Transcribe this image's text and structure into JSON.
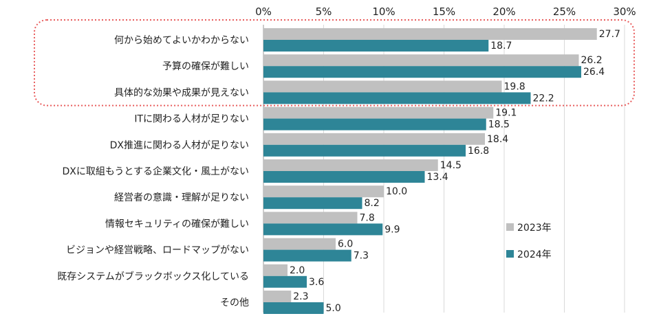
{
  "chart_data": {
    "type": "bar",
    "orientation": "horizontal",
    "title": "",
    "xlabel": "",
    "ylabel": "",
    "xlim": [
      0,
      30
    ],
    "xtick_labels": [
      "0%",
      "5%",
      "10%",
      "15%",
      "20%",
      "25%",
      "30%"
    ],
    "grid": true,
    "legend_position": "bottom-right",
    "categories": [
      "何から始めてよいかわからない",
      "予算の確保が難しい",
      "具体的な効果や成果が見えない",
      "ITに関わる人材が足りない",
      "DX推進に関わる人材が足りない",
      "DXに取組もうとする企業文化・風土がない",
      "経営者の意識・理解が足りない",
      "情報セキュリティの確保が難しい",
      "ビジョンや経営戦略、ロードマップがない",
      "既存システムがブラックボックス化している",
      "その他"
    ],
    "series": [
      {
        "name": "2023年",
        "color": "#c0c0c0",
        "values": [
          27.7,
          26.2,
          19.8,
          19.1,
          18.4,
          14.5,
          10.0,
          7.8,
          6.0,
          2.0,
          2.3
        ],
        "labels": [
          "27.7",
          "26.2",
          "19.8",
          "19.1",
          "18.4",
          "14.5",
          "10.0",
          "7.8",
          "6.0",
          "2.0",
          "2.3"
        ]
      },
      {
        "name": "2024年",
        "color": "#2e8597",
        "values": [
          18.7,
          26.4,
          22.2,
          18.5,
          16.8,
          13.4,
          8.2,
          9.9,
          7.3,
          3.6,
          5.0
        ],
        "labels": [
          "18.7",
          "26.4",
          "22.2",
          "18.5",
          "16.8",
          "13.4",
          "8.2",
          "9.9",
          "7.3",
          "3.6",
          "5.0"
        ]
      }
    ],
    "highlight": {
      "categories": [
        0,
        1,
        2
      ],
      "style": "dotted-red-rounded-box",
      "color": "#e85a5a"
    }
  }
}
